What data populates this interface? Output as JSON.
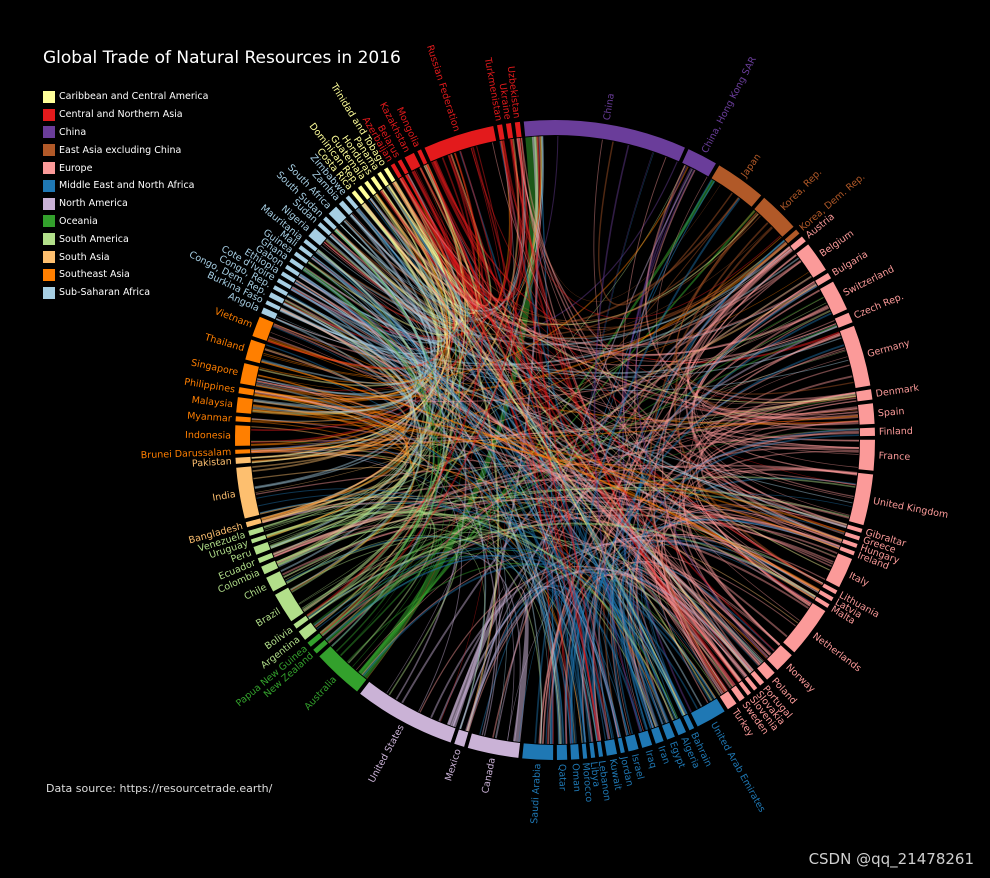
{
  "page": {
    "title": "Global Trade of Natural Resources in 2016",
    "source": "Data source: https://resourcetrade.earth/",
    "watermark": "CSDN @qq_21478261",
    "background": "#000000"
  },
  "chart_data": {
    "type": "chord",
    "title": "Global Trade of Natural Resources in 2016",
    "regions": [
      {
        "name": "Caribbean and Central America",
        "color": "#ffff99"
      },
      {
        "name": "Central and Northern Asia",
        "color": "#e31a1c"
      },
      {
        "name": "China",
        "color": "#6a3d9a"
      },
      {
        "name": "East Asia excluding China",
        "color": "#b15928"
      },
      {
        "name": "Europe",
        "color": "#fb9a99"
      },
      {
        "name": "Middle East and North Africa",
        "color": "#1f78b4"
      },
      {
        "name": "North America",
        "color": "#cab2d6"
      },
      {
        "name": "Oceania",
        "color": "#33a02c"
      },
      {
        "name": "South America",
        "color": "#b2df8a"
      },
      {
        "name": "South Asia",
        "color": "#fdbf6f"
      },
      {
        "name": "Southeast Asia",
        "color": "#ff7f00"
      },
      {
        "name": "Sub-Saharan Africa",
        "color": "#a6cee3"
      }
    ],
    "countries": [
      {
        "name": "Russian Federation",
        "region": "Central and Northern Asia",
        "size": 7
      },
      {
        "name": "Turkmenistan",
        "region": "Central and Northern Asia",
        "size": 0.5
      },
      {
        "name": "Ukraine",
        "region": "Central and Northern Asia",
        "size": 0.5
      },
      {
        "name": "Uzbekistan",
        "region": "Central and Northern Asia",
        "size": 0.5
      },
      {
        "name": "China",
        "region": "China",
        "size": 16
      },
      {
        "name": "China, Hong Kong SAR",
        "region": "China",
        "size": 3
      },
      {
        "name": "Japan",
        "region": "East Asia excluding China",
        "size": 5
      },
      {
        "name": "Korea, Rep.",
        "region": "East Asia excluding China",
        "size": 4
      },
      {
        "name": "Korea, Dem. Rep.",
        "region": "East Asia excluding China",
        "size": 0.5
      },
      {
        "name": "Austria",
        "region": "Europe",
        "size": 0.6
      },
      {
        "name": "Belgium",
        "region": "Europe",
        "size": 3
      },
      {
        "name": "Bulgaria",
        "region": "Europe",
        "size": 0.6
      },
      {
        "name": "Switzerland",
        "region": "Europe",
        "size": 3
      },
      {
        "name": "Czech Rep.",
        "region": "Europe",
        "size": 1
      },
      {
        "name": "Germany",
        "region": "Europe",
        "size": 6
      },
      {
        "name": "Denmark",
        "region": "Europe",
        "size": 1
      },
      {
        "name": "Spain",
        "region": "Europe",
        "size": 2
      },
      {
        "name": "Finland",
        "region": "Europe",
        "size": 0.8
      },
      {
        "name": "France",
        "region": "Europe",
        "size": 3
      },
      {
        "name": "United Kingdom",
        "region": "Europe",
        "size": 5
      },
      {
        "name": "Gibraltar",
        "region": "Europe",
        "size": 0.4
      },
      {
        "name": "Greece",
        "region": "Europe",
        "size": 0.4
      },
      {
        "name": "Hungary",
        "region": "Europe",
        "size": 0.4
      },
      {
        "name": "Ireland",
        "region": "Europe",
        "size": 0.4
      },
      {
        "name": "Italy",
        "region": "Europe",
        "size": 3
      },
      {
        "name": "Lithuania",
        "region": "Europe",
        "size": 0.4
      },
      {
        "name": "Latvia",
        "region": "Europe",
        "size": 0.4
      },
      {
        "name": "Malta",
        "region": "Europe",
        "size": 0.4
      },
      {
        "name": "Netherlands",
        "region": "Europe",
        "size": 5
      },
      {
        "name": "Norway",
        "region": "Europe",
        "size": 2
      },
      {
        "name": "Poland",
        "region": "Europe",
        "size": 1
      },
      {
        "name": "Portugal",
        "region": "Europe",
        "size": 0.5
      },
      {
        "name": "Slovakia",
        "region": "Europe",
        "size": 0.4
      },
      {
        "name": "Slovenia",
        "region": "Europe",
        "size": 0.4
      },
      {
        "name": "Sweden",
        "region": "Europe",
        "size": 0.6
      },
      {
        "name": "Turkey",
        "region": "Europe",
        "size": 1
      },
      {
        "name": "United Arab Emirates",
        "region": "Middle East and North Africa",
        "size": 3
      },
      {
        "name": "Bahrain",
        "region": "Middle East and North Africa",
        "size": 0.5
      },
      {
        "name": "Algeria",
        "region": "Middle East and North Africa",
        "size": 0.8
      },
      {
        "name": "Egypt",
        "region": "Middle East and North Africa",
        "size": 0.8
      },
      {
        "name": "Iran",
        "region": "Middle East and North Africa",
        "size": 0.8
      },
      {
        "name": "Iraq",
        "region": "Middle East and North Africa",
        "size": 1
      },
      {
        "name": "Israel",
        "region": "Middle East and North Africa",
        "size": 1
      },
      {
        "name": "Jordan",
        "region": "Middle East and North Africa",
        "size": 0.4
      },
      {
        "name": "Kuwait",
        "region": "Middle East and North Africa",
        "size": 1
      },
      {
        "name": "Lebanon",
        "region": "Middle East and North Africa",
        "size": 0.4
      },
      {
        "name": "Libya",
        "region": "Middle East and North Africa",
        "size": 0.4
      },
      {
        "name": "Morocco",
        "region": "Middle East and North Africa",
        "size": 0.4
      },
      {
        "name": "Oman",
        "region": "Middle East and North Africa",
        "size": 0.8
      },
      {
        "name": "Qatar",
        "region": "Middle East and North Africa",
        "size": 1
      },
      {
        "name": "Saudi Arabia",
        "region": "Middle East and North Africa",
        "size": 3
      },
      {
        "name": "Canada",
        "region": "North America",
        "size": 5
      },
      {
        "name": "Mexico",
        "region": "North America",
        "size": 1
      },
      {
        "name": "United States",
        "region": "North America",
        "size": 10
      },
      {
        "name": "Australia",
        "region": "Oceania",
        "size": 5
      },
      {
        "name": "New Zealand",
        "region": "Oceania",
        "size": 0.5
      },
      {
        "name": "Papua New Guinea",
        "region": "Oceania",
        "size": 0.5
      },
      {
        "name": "Argentina",
        "region": "South America",
        "size": 1
      },
      {
        "name": "Bolivia",
        "region": "South America",
        "size": 0.5
      },
      {
        "name": "Brazil",
        "region": "South America",
        "size": 3
      },
      {
        "name": "Chile",
        "region": "South America",
        "size": 1.5
      },
      {
        "name": "Colombia",
        "region": "South America",
        "size": 0.8
      },
      {
        "name": "Ecuador",
        "region": "South America",
        "size": 0.5
      },
      {
        "name": "Peru",
        "region": "South America",
        "size": 0.8
      },
      {
        "name": "Uruguay",
        "region": "South America",
        "size": 0.4
      },
      {
        "name": "Venezuela",
        "region": "South America",
        "size": 0.5
      },
      {
        "name": "Bangladesh",
        "region": "South Asia",
        "size": 0.5
      },
      {
        "name": "India",
        "region": "South Asia",
        "size": 5
      },
      {
        "name": "Pakistan",
        "region": "South Asia",
        "size": 0.6
      },
      {
        "name": "Brunei Darussalam",
        "region": "Southeast Asia",
        "size": 0.4
      },
      {
        "name": "Indonesia",
        "region": "Southeast Asia",
        "size": 2
      },
      {
        "name": "Myanmar",
        "region": "Southeast Asia",
        "size": 0.5
      },
      {
        "name": "Malaysia",
        "region": "Southeast Asia",
        "size": 1.5
      },
      {
        "name": "Philippines",
        "region": "Southeast Asia",
        "size": 0.6
      },
      {
        "name": "Singapore",
        "region": "Southeast Asia",
        "size": 2
      },
      {
        "name": "Thailand",
        "region": "Southeast Asia",
        "size": 2
      },
      {
        "name": "Vietnam",
        "region": "Southeast Asia",
        "size": 2
      },
      {
        "name": "Angola",
        "region": "Sub-Saharan Africa",
        "size": 0.6
      },
      {
        "name": "Burkina Faso",
        "region": "Sub-Saharan Africa",
        "size": 0.4
      },
      {
        "name": "Congo, Dem. Rep.",
        "region": "Sub-Saharan Africa",
        "size": 0.5
      },
      {
        "name": "Congo, Rep.",
        "region": "Sub-Saharan Africa",
        "size": 0.4
      },
      {
        "name": "Cote d'Ivoire",
        "region": "Sub-Saharan Africa",
        "size": 0.4
      },
      {
        "name": "Ethiopia",
        "region": "Sub-Saharan Africa",
        "size": 0.4
      },
      {
        "name": "Gabon",
        "region": "Sub-Saharan Africa",
        "size": 0.4
      },
      {
        "name": "Ghana",
        "region": "Sub-Saharan Africa",
        "size": 0.4
      },
      {
        "name": "Guinea",
        "region": "Sub-Saharan Africa",
        "size": 0.4
      },
      {
        "name": "Mali",
        "region": "Sub-Saharan Africa",
        "size": 0.4
      },
      {
        "name": "Mauritania",
        "region": "Sub-Saharan Africa",
        "size": 0.4
      },
      {
        "name": "Nigeria",
        "region": "Sub-Saharan Africa",
        "size": 1
      },
      {
        "name": "Sudan",
        "region": "Sub-Saharan Africa",
        "size": 0.4
      },
      {
        "name": "South Sudan",
        "region": "Sub-Saharan Africa",
        "size": 0.4
      },
      {
        "name": "South Africa",
        "region": "Sub-Saharan Africa",
        "size": 1
      },
      {
        "name": "Zambia",
        "region": "Sub-Saharan Africa",
        "size": 0.5
      },
      {
        "name": "Zimbabwe",
        "region": "Sub-Saharan Africa",
        "size": 0.4
      },
      {
        "name": "Costa Rica",
        "region": "Caribbean and Central America",
        "size": 0.4
      },
      {
        "name": "Dominican Rep.",
        "region": "Caribbean and Central America",
        "size": 0.4
      },
      {
        "name": "Guatemala",
        "region": "Caribbean and Central America",
        "size": 0.4
      },
      {
        "name": "Honduras",
        "region": "Caribbean and Central America",
        "size": 0.4
      },
      {
        "name": "Panama",
        "region": "Caribbean and Central America",
        "size": 0.4
      },
      {
        "name": "Trinidad and Tobago",
        "region": "Caribbean and Central America",
        "size": 0.4
      },
      {
        "name": "Azerbaijan",
        "region": "Central and Northern Asia",
        "size": 0.4
      },
      {
        "name": "Belarus",
        "region": "Central and Northern Asia",
        "size": 0.4
      },
      {
        "name": "Kazakhstan",
        "region": "Central and Northern Asia",
        "size": 1
      },
      {
        "name": "Mongolia",
        "region": "Central and Northern Asia",
        "size": 0.4
      }
    ],
    "flows": [
      {
        "from": "Australia",
        "to": "China",
        "value": 9
      },
      {
        "from": "United States",
        "to": "China",
        "value": 3
      },
      {
        "from": "Brazil",
        "to": "China",
        "value": 3
      },
      {
        "from": "Russian Federation",
        "to": "China",
        "value": 3
      },
      {
        "from": "Canada",
        "to": "United States",
        "value": 6
      },
      {
        "from": "Mexico",
        "to": "United States",
        "value": 2
      },
      {
        "from": "Saudi Arabia",
        "to": "China",
        "value": 1.5
      },
      {
        "from": "Saudi Arabia",
        "to": "Japan",
        "value": 1.5
      },
      {
        "from": "Australia",
        "to": "Japan",
        "value": 3
      },
      {
        "from": "Australia",
        "to": "Korea, Rep.",
        "value": 2
      },
      {
        "from": "Russian Federation",
        "to": "Germany",
        "value": 2
      },
      {
        "from": "Russian Federation",
        "to": "Netherlands",
        "value": 2
      },
      {
        "from": "Norway",
        "to": "United Kingdom",
        "value": 1.5
      },
      {
        "from": "Netherlands",
        "to": "Germany",
        "value": 2
      },
      {
        "from": "Germany",
        "to": "France",
        "value": 1.5
      },
      {
        "from": "Belgium",
        "to": "Netherlands",
        "value": 1.5
      },
      {
        "from": "Switzerland",
        "to": "United Kingdom",
        "value": 1.5
      },
      {
        "from": "Indonesia",
        "to": "China",
        "value": 1.5
      },
      {
        "from": "India",
        "to": "United Arab Emirates",
        "value": 1.5
      },
      {
        "from": "Chile",
        "to": "China",
        "value": 1
      },
      {
        "from": "Qatar",
        "to": "Japan",
        "value": 1
      },
      {
        "from": "United Arab Emirates",
        "to": "India",
        "value": 1
      },
      {
        "from": "Angola",
        "to": "China",
        "value": 1
      },
      {
        "from": "South Africa",
        "to": "China",
        "value": 1
      }
    ]
  }
}
